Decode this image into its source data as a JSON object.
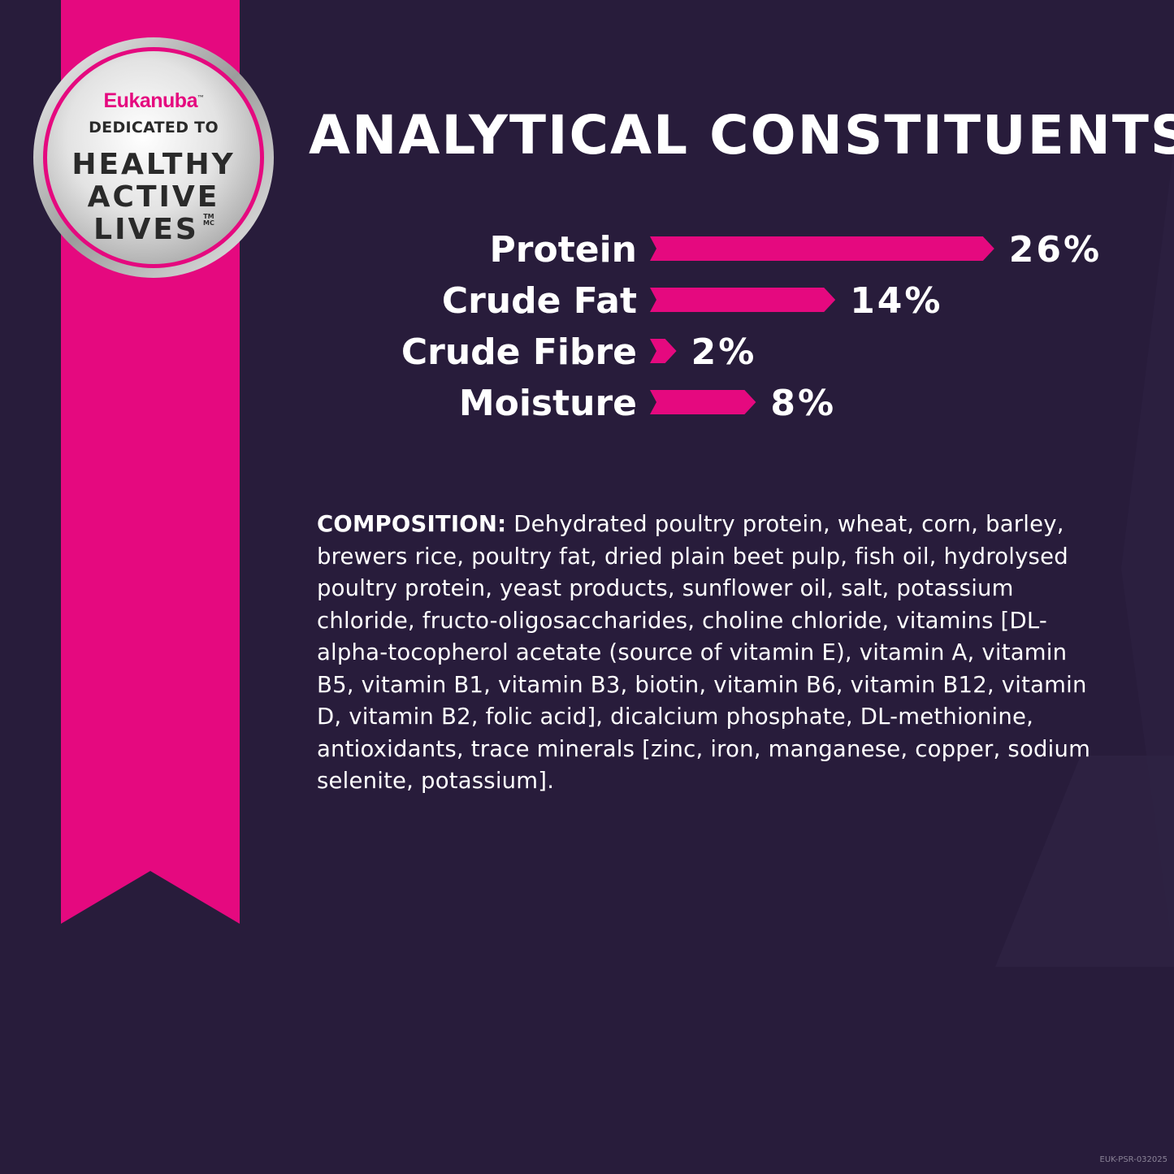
{
  "badge": {
    "brand": "Eukanuba",
    "brand_tm": "™",
    "line1": "DEDICATED TO",
    "line2": "HEALTHY",
    "line3": "ACTIVE",
    "line4": "LIVES",
    "tm": "TM",
    "mc": "MC"
  },
  "colors": {
    "background": "#281c3b",
    "accent": "#e5097f"
  },
  "title": "ANALYTICAL CONSTITUENTS",
  "chart_data": {
    "type": "bar",
    "orientation": "horizontal",
    "categories": [
      "Protein",
      "Crude Fat",
      "Crude Fibre",
      "Moisture"
    ],
    "values": [
      26,
      14,
      2,
      8
    ],
    "value_labels": [
      "26%",
      "14%",
      "2%",
      "8%"
    ],
    "unit": "%"
  },
  "composition": {
    "label": "COMPOSITION:",
    "text": " Dehydrated poultry protein, wheat, corn, barley, brewers rice, poultry fat, dried plain beet pulp, fish oil, hydrolysed poultry protein, yeast products, sunflower oil, salt, potassium chloride, fructo-oligosaccharides, choline chloride, vitamins [DL-alpha-tocopherol acetate (source of vitamin E), vitamin A, vitamin B5, vitamin B1, vitamin B3, biotin, vitamin B6, vitamin B12, vitamin D, vitamin B2, folic acid], dicalcium phosphate, DL-methionine, antioxidants, trace minerals [zinc, iron, manganese, copper, sodium selenite, potassium]."
  },
  "footer_code": "EUK-PSR-032025"
}
